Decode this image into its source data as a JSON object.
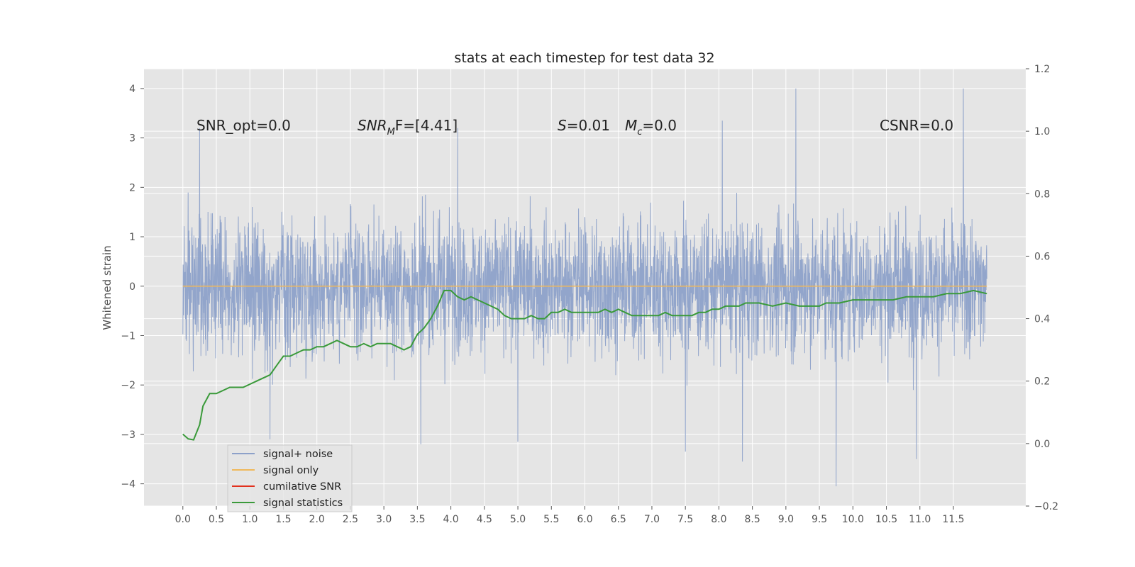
{
  "chart_data": {
    "type": "line",
    "title": "stats at each timestep for test data 32",
    "ylabel": "Whitened strain",
    "xlabel": "",
    "x_ticks": [
      "0.0",
      "0.5",
      "1.0",
      "1.5",
      "2.0",
      "2.5",
      "3.0",
      "3.5",
      "4.0",
      "4.5",
      "5.0",
      "5.5",
      "6.0",
      "6.5",
      "7.0",
      "7.5",
      "8.0",
      "8.5",
      "9.0",
      "9.5",
      "10.0",
      "10.5",
      "11.0",
      "11.5"
    ],
    "xlim": [
      -0.58,
      12.58
    ],
    "ylim_left": [
      -4.45,
      4.4
    ],
    "ylim_right": [
      -0.2,
      1.2
    ],
    "y_ticks_left": [
      "−4",
      "−3",
      "−2",
      "−1",
      "0",
      "1",
      "2",
      "3",
      "4"
    ],
    "y_ticks_right": [
      "−0.2",
      "0.0",
      "0.2",
      "0.4",
      "0.6",
      "0.8",
      "1.0",
      "1.2"
    ],
    "grid": true,
    "legend_position": "lower-left",
    "annotations": {
      "snr_opt": "SNR_opt=0.0",
      "snr_mf": {
        "main": "SNR",
        "sub": "M",
        "rest": "F=[4.41]"
      },
      "s": {
        "italic": "S",
        "rest": "=0.01"
      },
      "mc": {
        "main": "M",
        "sub": "c",
        "rest": "=0.0"
      },
      "csnr": "CSNR=0.0"
    },
    "series": [
      {
        "name": "signal+ noise",
        "color": "#8da1c9",
        "axis": "left",
        "x_range": [
          0.0,
          12.0
        ],
        "sample_rate_per_unit": 256,
        "typical_envelope": [
          -2.1,
          2.3
        ],
        "notable_extrema": [
          {
            "x": 0.25,
            "y": 3.2
          },
          {
            "x": 4.1,
            "y": 3.2
          },
          {
            "x": 8.05,
            "y": 3.35
          },
          {
            "x": 9.15,
            "y": 4.0
          },
          {
            "x": 11.65,
            "y": 4.0
          },
          {
            "x": 9.75,
            "y": -4.05
          },
          {
            "x": 10.95,
            "y": -3.5
          },
          {
            "x": 8.35,
            "y": -3.55
          },
          {
            "x": 7.5,
            "y": -3.35
          },
          {
            "x": 3.55,
            "y": -3.2
          },
          {
            "x": 5.0,
            "y": -3.15
          },
          {
            "x": 1.3,
            "y": -3.1
          },
          {
            "x": 6.0,
            "y": 1.4
          }
        ]
      },
      {
        "name": "signal only",
        "color": "#f0b85a",
        "axis": "left",
        "x": [
          0.0,
          12.0
        ],
        "y": [
          0.0,
          0.0
        ]
      },
      {
        "name": "cumilative SNR",
        "color": "#e2301d",
        "axis": "left",
        "x": [],
        "y": []
      },
      {
        "name": "signal statistics",
        "color": "#3a9a3a",
        "axis": "right",
        "x": [
          0.0,
          0.08,
          0.16,
          0.25,
          0.3,
          0.4,
          0.5,
          0.6,
          0.7,
          0.8,
          0.9,
          1.0,
          1.1,
          1.2,
          1.3,
          1.4,
          1.5,
          1.6,
          1.7,
          1.8,
          1.9,
          2.0,
          2.1,
          2.2,
          2.3,
          2.4,
          2.5,
          2.6,
          2.7,
          2.8,
          2.9,
          3.0,
          3.1,
          3.2,
          3.3,
          3.4,
          3.5,
          3.6,
          3.7,
          3.8,
          3.9,
          4.0,
          4.1,
          4.2,
          4.3,
          4.4,
          4.5,
          4.6,
          4.7,
          4.8,
          4.9,
          5.0,
          5.1,
          5.2,
          5.3,
          5.4,
          5.5,
          5.6,
          5.7,
          5.8,
          5.9,
          6.0,
          6.1,
          6.2,
          6.3,
          6.4,
          6.5,
          6.6,
          6.7,
          6.8,
          6.9,
          7.0,
          7.1,
          7.2,
          7.3,
          7.4,
          7.5,
          7.6,
          7.7,
          7.8,
          7.9,
          8.0,
          8.1,
          8.2,
          8.3,
          8.4,
          8.5,
          8.6,
          8.8,
          9.0,
          9.2,
          9.4,
          9.5,
          9.6,
          9.8,
          10.0,
          10.2,
          10.4,
          10.6,
          10.8,
          11.0,
          11.2,
          11.4,
          11.6,
          11.8,
          12.0
        ],
        "y": [
          0.03,
          0.015,
          0.012,
          0.06,
          0.12,
          0.16,
          0.16,
          0.17,
          0.18,
          0.18,
          0.18,
          0.19,
          0.2,
          0.21,
          0.22,
          0.25,
          0.28,
          0.28,
          0.29,
          0.3,
          0.3,
          0.31,
          0.31,
          0.32,
          0.33,
          0.32,
          0.31,
          0.31,
          0.32,
          0.31,
          0.32,
          0.32,
          0.32,
          0.31,
          0.3,
          0.31,
          0.35,
          0.37,
          0.4,
          0.44,
          0.49,
          0.49,
          0.47,
          0.46,
          0.47,
          0.46,
          0.45,
          0.44,
          0.43,
          0.41,
          0.4,
          0.4,
          0.4,
          0.41,
          0.4,
          0.4,
          0.42,
          0.42,
          0.43,
          0.42,
          0.42,
          0.42,
          0.42,
          0.42,
          0.43,
          0.42,
          0.43,
          0.42,
          0.41,
          0.41,
          0.41,
          0.41,
          0.41,
          0.42,
          0.41,
          0.41,
          0.41,
          0.41,
          0.42,
          0.42,
          0.43,
          0.43,
          0.44,
          0.44,
          0.44,
          0.45,
          0.45,
          0.45,
          0.44,
          0.45,
          0.44,
          0.44,
          0.44,
          0.45,
          0.45,
          0.46,
          0.46,
          0.46,
          0.46,
          0.47,
          0.47,
          0.47,
          0.48,
          0.48,
          0.49,
          0.48
        ]
      }
    ]
  }
}
